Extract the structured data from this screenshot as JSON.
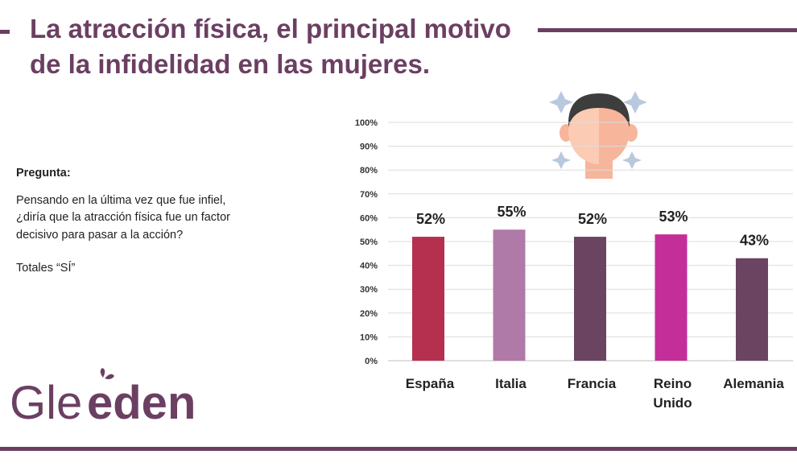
{
  "header": {
    "title_line1": "La atracción física, el principal motivo",
    "title_line2": "de la infidelidad en las mujeres."
  },
  "question": {
    "heading": "Pregunta:",
    "body": "Pensando en la última  vez que fue infiel,\n¿diría que la atracción física  fue un factor\ndecisivo para pasar a la acción?",
    "totals": "Totales “SÍ”"
  },
  "logo": {
    "text_light": "Gle",
    "text_bold": "eden"
  },
  "colors": {
    "brand": "#6b3f62",
    "grid": "#dcdcdc"
  },
  "illustration": {
    "icon": "face-person-icon"
  },
  "chart_data": {
    "type": "bar",
    "categories": [
      "España",
      "Italia",
      "Francia",
      "Reino Unido",
      "Alemania"
    ],
    "category_lines": [
      [
        "España"
      ],
      [
        "Italia"
      ],
      [
        "Francia"
      ],
      [
        "Reino",
        "Unido"
      ],
      [
        "Alemania"
      ]
    ],
    "values": [
      52,
      55,
      52,
      53,
      43
    ],
    "value_labels": [
      "52%",
      "55%",
      "52%",
      "53%",
      "43%"
    ],
    "bar_colors": [
      "#b5304f",
      "#b07aa8",
      "#6b4462",
      "#c42e98",
      "#6b4462"
    ],
    "yticks": [
      "0%",
      "10%",
      "20%",
      "30%",
      "40%",
      "50%",
      "60%",
      "70%",
      "80%",
      "90%",
      "100%"
    ],
    "ylim": [
      0,
      100
    ],
    "title": "",
    "xlabel": "",
    "ylabel": "",
    "grid": true
  }
}
